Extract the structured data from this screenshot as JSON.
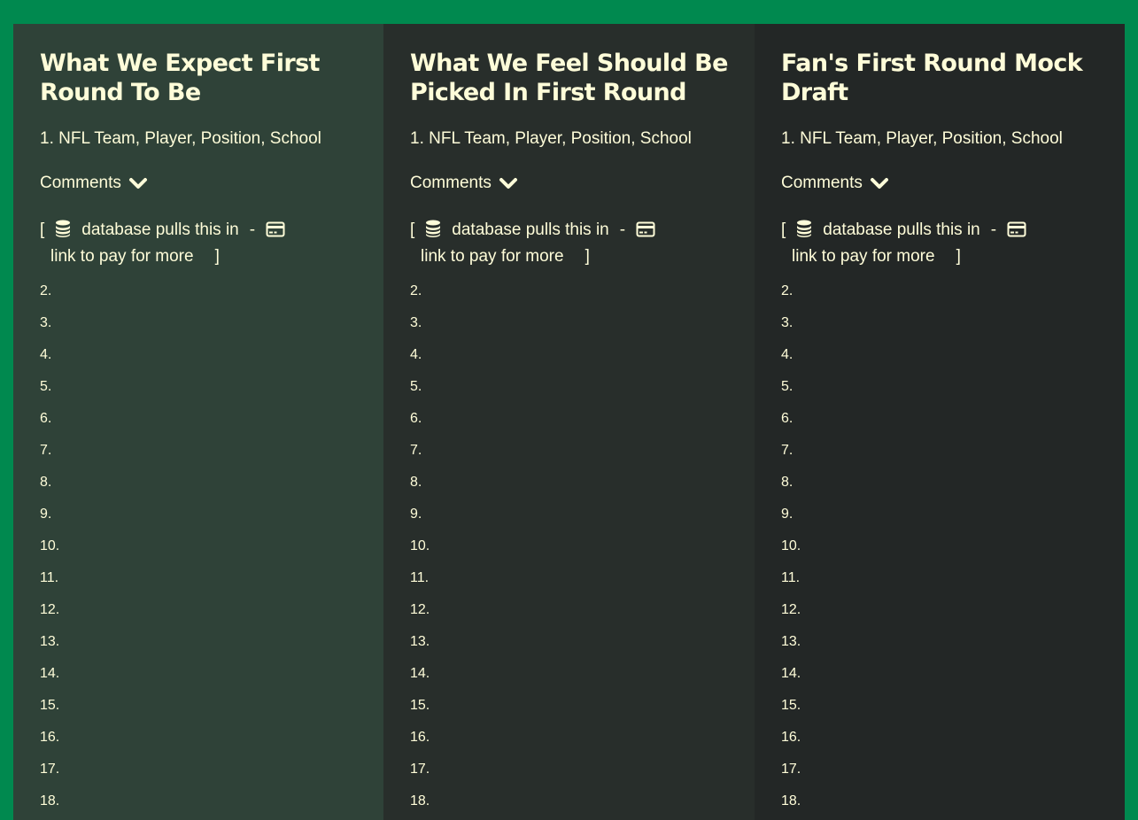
{
  "colors": {
    "page_background": "#00894f",
    "text": "#fffdd9",
    "column_1_bg": "#2f4238",
    "column_2_bg": "#282e2b",
    "column_3_bg": "#232726"
  },
  "columns": [
    {
      "title": "What We Expect First Round To Be",
      "first_pick": "1. NFL Team, Player, Position, School",
      "comments_label": "Comments",
      "comments_icon": "chevron-down-icon",
      "db_open": "[",
      "db_icon": "database-icon",
      "db_text": "database pulls this in",
      "db_separator": "-",
      "pay_icon": "credit-card-icon",
      "pay_text": "link to pay for more",
      "db_close": "]",
      "picks": [
        "2.",
        "3.",
        "4.",
        "5.",
        "6.",
        "7.",
        "8.",
        "9.",
        "10.",
        "11.",
        "12.",
        "13.",
        "14.",
        "15.",
        "16.",
        "17.",
        "18."
      ]
    },
    {
      "title": "What We Feel Should Be Picked In First Round",
      "first_pick": "1. NFL Team, Player, Position, School",
      "comments_label": "Comments",
      "comments_icon": "chevron-down-icon",
      "db_open": "[",
      "db_icon": "database-icon",
      "db_text": "database pulls this in",
      "db_separator": "-",
      "pay_icon": "credit-card-icon",
      "pay_text": "link to pay for more",
      "db_close": "]",
      "picks": [
        "2.",
        "3.",
        "4.",
        "5.",
        "6.",
        "7.",
        "8.",
        "9.",
        "10.",
        "11.",
        "12.",
        "13.",
        "14.",
        "15.",
        "16.",
        "17.",
        "18."
      ]
    },
    {
      "title": "Fan's First Round Mock Draft",
      "first_pick": "1. NFL Team, Player, Position, School",
      "comments_label": "Comments",
      "comments_icon": "chevron-down-icon",
      "db_open": "[",
      "db_icon": "database-icon",
      "db_text": "database pulls this in",
      "db_separator": "-",
      "pay_icon": "credit-card-icon",
      "pay_text": "link to pay for more",
      "db_close": "]",
      "picks": [
        "2.",
        "3.",
        "4.",
        "5.",
        "6.",
        "7.",
        "8.",
        "9.",
        "10.",
        "11.",
        "12.",
        "13.",
        "14.",
        "15.",
        "16.",
        "17.",
        "18."
      ]
    }
  ]
}
